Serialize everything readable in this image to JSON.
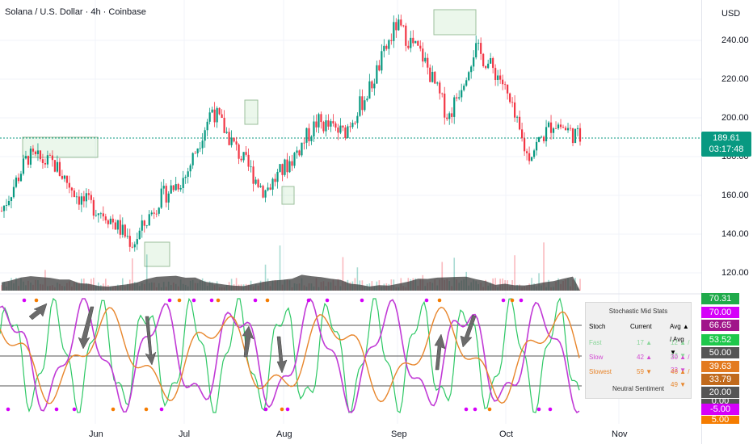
{
  "title": "Solana / U.S. Dollar · 4h · Coinbase",
  "currency": "USD",
  "price_axis": [
    "240.00",
    "220.00",
    "200.00",
    "180.00",
    "160.00",
    "140.00",
    "120.00"
  ],
  "last_price": "189.61",
  "countdown": "03:17:48",
  "indicator_axis": [
    {
      "value": "70.31",
      "color": "#1faa4a"
    },
    {
      "value": "70.00",
      "color": "#d500f9"
    },
    {
      "value": "66.65",
      "color": "#a0158a"
    },
    {
      "value": "53.52",
      "color": "#1ec84b"
    },
    {
      "value": "50.00",
      "color": "#555555"
    },
    {
      "value": "39.63",
      "color": "#e37a1f"
    },
    {
      "value": "33.79",
      "color": "#c16a1c"
    },
    {
      "value": "20.00",
      "color": "#555555"
    },
    {
      "value": "0.00",
      "color": "#555555"
    },
    {
      "value": "-5.00",
      "color": "#d500f9"
    },
    {
      "value": "5.00",
      "color": "#f57c00"
    }
  ],
  "months": [
    "Jun",
    "Jul",
    "Aug",
    "Sep",
    "Oct",
    "Nov"
  ],
  "stats": {
    "title": "Stochastic Mid Stats",
    "headers": {
      "stoch": "Stoch",
      "current": "Current",
      "avg": "Avg ▲ / Avg ▼"
    },
    "rows": [
      {
        "name": "Fast",
        "current": "17 ▲",
        "avg": "12 ▲ / 13 ▼",
        "color": "#8ad69a"
      },
      {
        "name": "Slow",
        "current": "42 ▲",
        "avg": "30 ▲ / 33 ▼",
        "color": "#d24bd2"
      },
      {
        "name": "Slowest",
        "current": "59 ▼",
        "avg": "46 ▲ / 49 ▼",
        "color": "#e8862c"
      }
    ],
    "sentiment": "Neutral Sentiment"
  },
  "chart_data": {
    "type": "candlestick",
    "x": [
      "May 20",
      "May 27",
      "Jun 3",
      "Jun 10",
      "Jun 17",
      "Jun 24",
      "Jul 1",
      "Jul 8",
      "Jul 15",
      "Jul 22",
      "Jul 29",
      "Aug 5",
      "Aug 12",
      "Aug 19",
      "Aug 26",
      "Sep 2",
      "Sep 9",
      "Sep 16",
      "Sep 23",
      "Sep 30",
      "Oct 7",
      "Oct 14",
      "Oct 21"
    ],
    "close": [
      152,
      180,
      176,
      158,
      150,
      135,
      158,
      170,
      205,
      182,
      162,
      178,
      198,
      192,
      215,
      248,
      232,
      200,
      236,
      220,
      180,
      198,
      189.61
    ],
    "ylim": [
      110,
      255
    ],
    "colors": {
      "up": "#089981",
      "down": "#f23645"
    }
  }
}
